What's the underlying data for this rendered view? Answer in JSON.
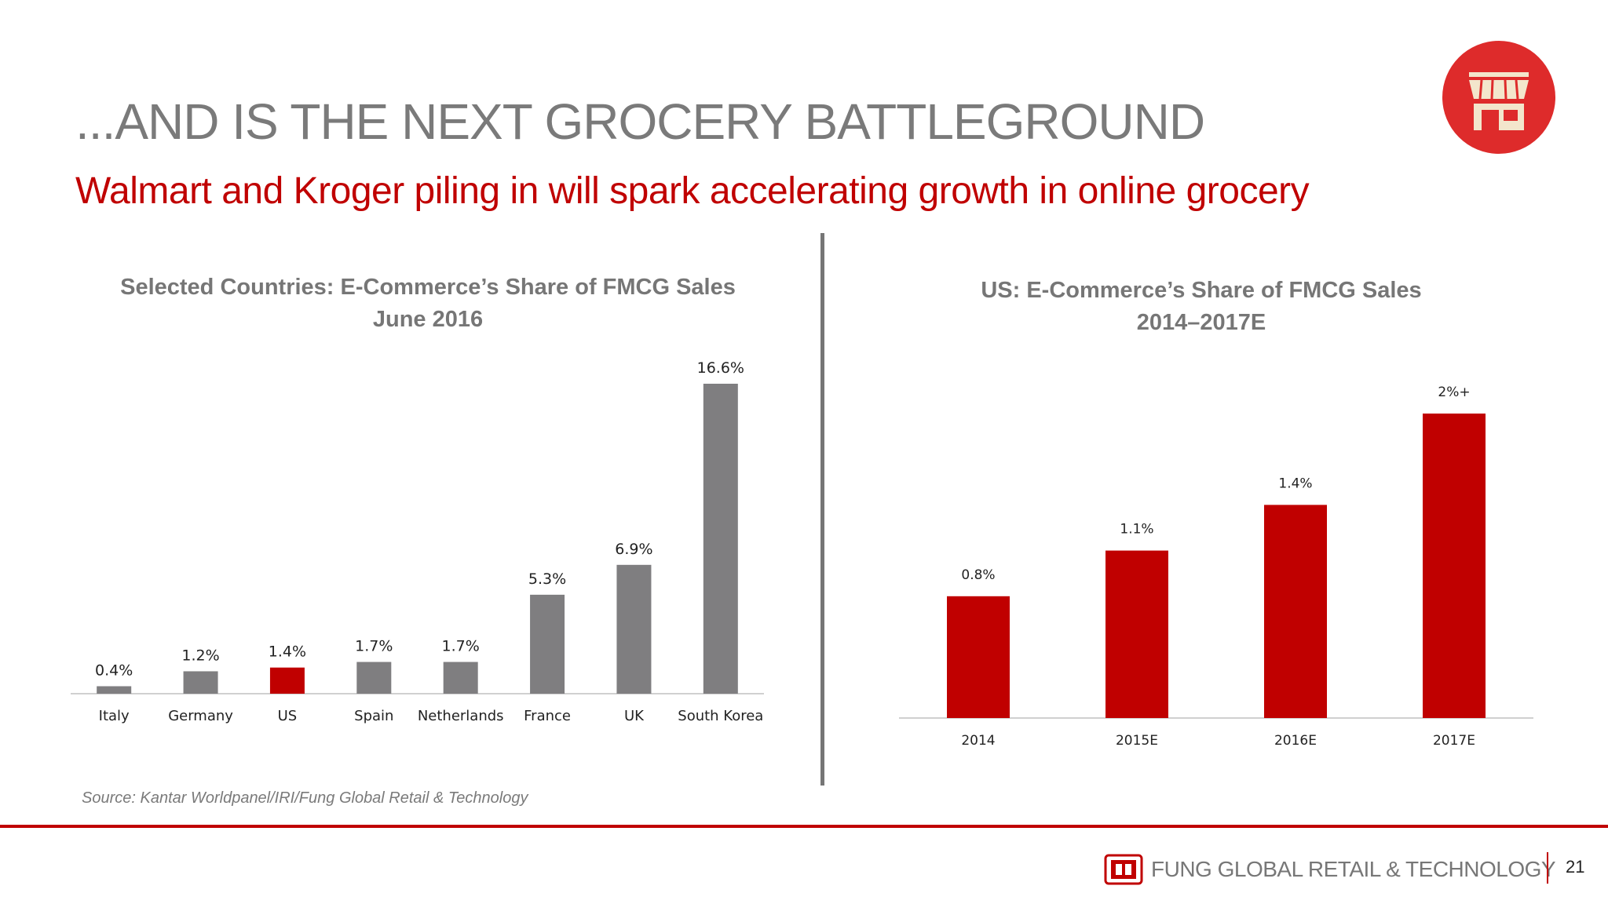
{
  "slide": {
    "title": "...AND IS THE NEXT GROCERY BATTLEGROUND",
    "subtitle": "Walmart and Kroger piling in will spark accelerating growth in online grocery",
    "source": "Source: Kantar Worldpanel/IRI/Fung Global Retail & Technology",
    "brand": "FUNG GLOBAL RETAIL & TECHNOLOGY",
    "page_number": "21",
    "badge_icon": "storefront-icon"
  },
  "colors": {
    "accent": "#c00000",
    "gray_bar": "#7f7e80",
    "badge": "#de2b2b"
  },
  "chart_data": [
    {
      "type": "bar",
      "title": "Selected Countries: E-Commerce’s Share of FMCG Sales",
      "subtitle": "June 2016",
      "categories": [
        "Italy",
        "Germany",
        "US",
        "Spain",
        "Netherlands",
        "France",
        "UK",
        "South Korea"
      ],
      "values": [
        0.4,
        1.2,
        1.4,
        1.7,
        1.7,
        5.3,
        6.9,
        16.6
      ],
      "labels": [
        "0.4%",
        "1.2%",
        "1.4%",
        "1.7%",
        "1.7%",
        "5.3%",
        "6.9%",
        "16.6%"
      ],
      "highlight_category": "US",
      "xlabel": "",
      "ylabel": "",
      "ylim": [
        0,
        16.6
      ],
      "grid": false
    },
    {
      "type": "bar",
      "title": "US: E-Commerce’s Share of FMCG Sales",
      "subtitle": "2014–2017E",
      "categories": [
        "2014",
        "2015E",
        "2016E",
        "2017E"
      ],
      "values": [
        0.8,
        1.1,
        1.4,
        2.0
      ],
      "labels": [
        "0.8%",
        "1.1%",
        "1.4%",
        "2%+"
      ],
      "xlabel": "",
      "ylabel": "",
      "ylim": [
        0,
        2.0
      ],
      "grid": false
    }
  ]
}
